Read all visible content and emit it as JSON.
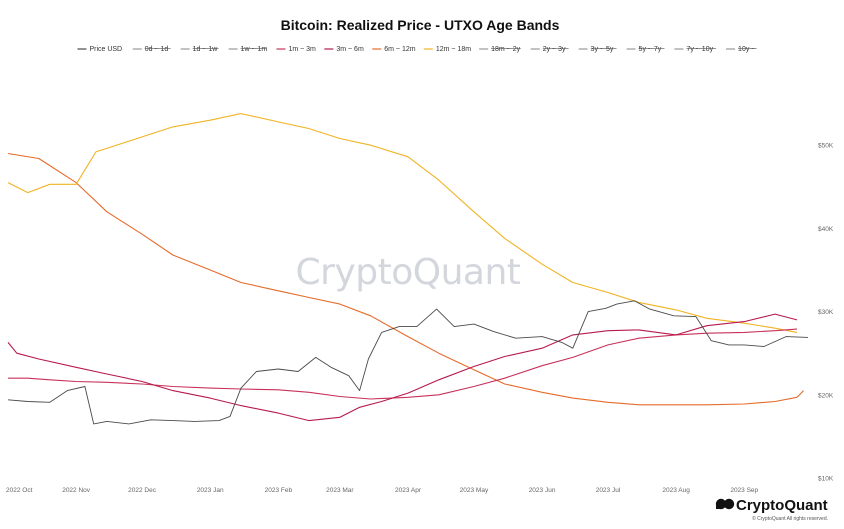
{
  "brand": {
    "watermark": "CryptoQuant",
    "logo_text": "CryptoQuant",
    "copyright": "© CryptoQuant All rights reserved."
  },
  "chart_data": {
    "type": "line",
    "title": "Bitcoin: Realized Price - UTXO Age Bands",
    "xlabel": "",
    "ylabel": "",
    "xlim": [
      "2022-10-01",
      "2023-09-30"
    ],
    "ylim": [
      10000,
      60000
    ],
    "y_ticks": [
      {
        "value": 10000,
        "label": "$10K"
      },
      {
        "value": 20000,
        "label": "$20K"
      },
      {
        "value": 30000,
        "label": "$30K"
      },
      {
        "value": 40000,
        "label": "$40K"
      },
      {
        "value": 50000,
        "label": "$50K"
      }
    ],
    "x_ticks": [
      {
        "value": "2022-10-01",
        "label": "2022 Oct"
      },
      {
        "value": "2022-11-01",
        "label": "2022 Nov"
      },
      {
        "value": "2022-12-01",
        "label": "2022 Dec"
      },
      {
        "value": "2023-01-01",
        "label": "2023 Jan"
      },
      {
        "value": "2023-02-01",
        "label": "2023 Feb"
      },
      {
        "value": "2023-03-01",
        "label": "2023 Mar"
      },
      {
        "value": "2023-04-01",
        "label": "2023 Apr"
      },
      {
        "value": "2023-05-01",
        "label": "2023 May"
      },
      {
        "value": "2023-06-01",
        "label": "2023 Jun"
      },
      {
        "value": "2023-07-01",
        "label": "2023 Jul"
      },
      {
        "value": "2023-08-01",
        "label": "2023 Aug"
      },
      {
        "value": "2023-09-01",
        "label": "2023 Sep"
      }
    ],
    "grid": false,
    "legend_position": "top",
    "series": [
      {
        "name": "Price USD",
        "color": "#4a4a4a",
        "visible": true,
        "x": [
          "2022-10-01",
          "2022-10-10",
          "2022-10-20",
          "2022-10-28",
          "2022-11-05",
          "2022-11-09",
          "2022-11-15",
          "2022-11-25",
          "2022-12-05",
          "2022-12-15",
          "2022-12-25",
          "2023-01-05",
          "2023-01-10",
          "2023-01-15",
          "2023-01-22",
          "2023-02-01",
          "2023-02-10",
          "2023-02-18",
          "2023-02-25",
          "2023-03-05",
          "2023-03-10",
          "2023-03-14",
          "2023-03-20",
          "2023-03-28",
          "2023-04-05",
          "2023-04-14",
          "2023-04-22",
          "2023-05-01",
          "2023-05-10",
          "2023-05-20",
          "2023-06-01",
          "2023-06-10",
          "2023-06-15",
          "2023-06-22",
          "2023-06-30",
          "2023-07-05",
          "2023-07-13",
          "2023-07-20",
          "2023-07-31",
          "2023-08-10",
          "2023-08-17",
          "2023-08-25",
          "2023-09-01",
          "2023-09-10",
          "2023-09-20",
          "2023-09-30"
        ],
        "y": [
          19400,
          19200,
          19100,
          20500,
          21000,
          16500,
          16800,
          16500,
          17000,
          16900,
          16800,
          16900,
          17400,
          20800,
          22800,
          23100,
          22800,
          24500,
          23300,
          22300,
          20500,
          24300,
          27500,
          28200,
          28200,
          30300,
          28200,
          28500,
          27600,
          26800,
          27000,
          26300,
          25600,
          30000,
          30400,
          30900,
          31300,
          30300,
          29500,
          29400,
          26500,
          26000,
          26000,
          25800,
          27000,
          26900
        ]
      },
      {
        "name": "0d ~ 1d",
        "color": "#7a7a7a",
        "visible": false,
        "x": [],
        "y": []
      },
      {
        "name": "1d ~ 1w",
        "color": "#7a7a7a",
        "visible": false,
        "x": [],
        "y": []
      },
      {
        "name": "1w ~ 1m",
        "color": "#7a7a7a",
        "visible": false,
        "x": [],
        "y": []
      },
      {
        "name": "1m ~ 3m",
        "color": "#c8315a",
        "visible": true,
        "x": [
          "2022-10-01",
          "2022-10-10",
          "2022-10-20",
          "2022-11-01",
          "2022-11-15",
          "2022-12-01",
          "2022-12-15",
          "2023-01-01",
          "2023-01-15",
          "2023-02-01",
          "2023-02-15",
          "2023-03-01",
          "2023-03-15",
          "2023-04-01",
          "2023-04-15",
          "2023-05-01",
          "2023-05-15",
          "2023-06-01",
          "2023-06-15",
          "2023-07-01",
          "2023-07-15",
          "2023-08-01",
          "2023-08-15",
          "2023-09-01",
          "2023-09-15",
          "2023-09-25"
        ],
        "y": [
          22000,
          22000,
          21800,
          21600,
          21500,
          21300,
          21000,
          20800,
          20700,
          20600,
          20300,
          19800,
          19500,
          19700,
          20000,
          21000,
          22000,
          23500,
          24500,
          26000,
          26800,
          27200,
          27400,
          27500,
          27700,
          27900
        ]
      },
      {
        "name": "3m ~ 6m",
        "color": "#b61a4e",
        "visible": true,
        "x": [
          "2022-10-01",
          "2022-10-05",
          "2022-10-15",
          "2022-11-01",
          "2022-11-15",
          "2022-12-01",
          "2022-12-15",
          "2023-01-01",
          "2023-01-15",
          "2023-02-01",
          "2023-02-15",
          "2023-03-01",
          "2023-03-10",
          "2023-03-20",
          "2023-04-01",
          "2023-04-15",
          "2023-05-01",
          "2023-05-15",
          "2023-06-01",
          "2023-06-15",
          "2023-07-01",
          "2023-07-15",
          "2023-08-01",
          "2023-08-15",
          "2023-09-01",
          "2023-09-15",
          "2023-09-25"
        ],
        "y": [
          26300,
          25000,
          24300,
          23300,
          22500,
          21600,
          20500,
          19600,
          18700,
          17800,
          16900,
          17300,
          18500,
          19200,
          20200,
          21800,
          23400,
          24600,
          25600,
          27200,
          27700,
          27800,
          27200,
          28300,
          28800,
          29700,
          29000
        ]
      },
      {
        "name": "6m ~ 12m",
        "color": "#e56b2b",
        "visible": true,
        "x": [
          "2022-10-01",
          "2022-10-15",
          "2022-11-01",
          "2022-11-15",
          "2022-12-01",
          "2022-12-15",
          "2023-01-01",
          "2023-01-15",
          "2023-02-01",
          "2023-02-15",
          "2023-03-01",
          "2023-03-15",
          "2023-04-01",
          "2023-04-15",
          "2023-05-01",
          "2023-05-15",
          "2023-06-01",
          "2023-06-15",
          "2023-07-01",
          "2023-07-15",
          "2023-08-01",
          "2023-08-15",
          "2023-09-01",
          "2023-09-15",
          "2023-09-25",
          "2023-09-28"
        ],
        "y": [
          49000,
          48400,
          45500,
          42000,
          39300,
          36800,
          35000,
          33500,
          32500,
          31700,
          30900,
          29500,
          27000,
          25000,
          23000,
          21300,
          20300,
          19600,
          19100,
          18800,
          18800,
          18800,
          18900,
          19200,
          19700,
          20500
        ]
      },
      {
        "name": "12m ~ 18m",
        "color": "#f0b323",
        "visible": true,
        "x": [
          "2022-10-01",
          "2022-10-10",
          "2022-10-20",
          "2022-11-01",
          "2022-11-10",
          "2022-12-01",
          "2022-12-15",
          "2023-01-01",
          "2023-01-15",
          "2023-02-01",
          "2023-02-15",
          "2023-03-01",
          "2023-03-15",
          "2023-04-01",
          "2023-04-15",
          "2023-05-01",
          "2023-05-15",
          "2023-06-01",
          "2023-06-15",
          "2023-07-01",
          "2023-07-15",
          "2023-08-01",
          "2023-08-15",
          "2023-09-01",
          "2023-09-15",
          "2023-09-25"
        ],
        "y": [
          45500,
          44300,
          45300,
          45300,
          49200,
          51000,
          52200,
          53000,
          53800,
          52800,
          52000,
          50800,
          50000,
          48600,
          45800,
          42000,
          38800,
          35700,
          33500,
          32300,
          31100,
          30200,
          29200,
          28600,
          28000,
          27500
        ]
      },
      {
        "name": "18m ~ 2y",
        "color": "#7a7a7a",
        "visible": false,
        "x": [],
        "y": []
      },
      {
        "name": "2y ~ 3y",
        "color": "#7a7a7a",
        "visible": false,
        "x": [],
        "y": []
      },
      {
        "name": "3y ~ 5y",
        "color": "#7a7a7a",
        "visible": false,
        "x": [],
        "y": []
      },
      {
        "name": "5y ~ 7y",
        "color": "#7a7a7a",
        "visible": false,
        "x": [],
        "y": []
      },
      {
        "name": "7y ~ 10y",
        "color": "#7a7a7a",
        "visible": false,
        "x": [],
        "y": []
      },
      {
        "name": "10y ~",
        "color": "#7a7a7a",
        "visible": false,
        "x": [],
        "y": []
      }
    ]
  }
}
